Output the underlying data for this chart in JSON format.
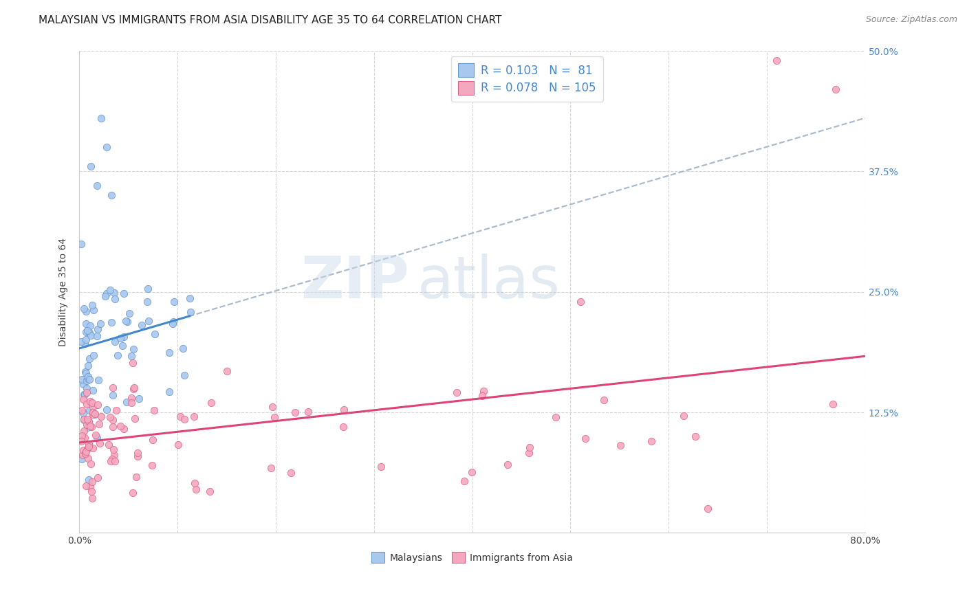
{
  "title": "MALAYSIAN VS IMMIGRANTS FROM ASIA DISABILITY AGE 35 TO 64 CORRELATION CHART",
  "source": "Source: ZipAtlas.com",
  "ylabel": "Disability Age 35 to 64",
  "x_min": 0.0,
  "x_max": 0.8,
  "y_min": 0.0,
  "y_max": 0.5,
  "x_ticks": [
    0.0,
    0.1,
    0.2,
    0.3,
    0.4,
    0.5,
    0.6,
    0.7,
    0.8
  ],
  "x_tick_labels": [
    "0.0%",
    "",
    "",
    "",
    "",
    "",
    "",
    "",
    "80.0%"
  ],
  "y_ticks": [
    0.0,
    0.125,
    0.25,
    0.375,
    0.5
  ],
  "y_tick_labels_right": [
    "",
    "12.5%",
    "25.0%",
    "37.5%",
    "50.0%"
  ],
  "legend_r1": "0.103",
  "legend_n1": " 81",
  "legend_r2": "0.078",
  "legend_n2": "105",
  "color_blue": "#A8C8F0",
  "color_pink": "#F4A8C0",
  "color_blue_edge": "#6699CC",
  "color_pink_edge": "#DD6688",
  "color_blue_line": "#4488CC",
  "color_pink_line": "#DD4477",
  "color_dashed": "#AABBCC",
  "background": "#FFFFFF",
  "grid_color": "#CCCCCC",
  "watermark_zip": "ZIP",
  "watermark_atlas": "atlas",
  "title_fontsize": 11,
  "source_fontsize": 9,
  "axis_label_fontsize": 10,
  "tick_fontsize": 10,
  "legend_fontsize": 12,
  "watermark_fontsize_zip": 72,
  "watermark_fontsize_atlas": 72
}
